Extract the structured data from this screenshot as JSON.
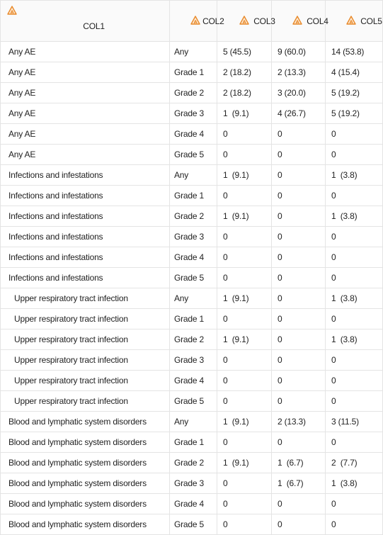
{
  "colors": {
    "header_icon": "#e8892a",
    "grid": "#e4e4e4",
    "header_bg": "#fafafa",
    "text": "#222222"
  },
  "header": {
    "icon": "character-column-icon",
    "columns": [
      "COL1",
      "COL2",
      "COL3",
      "COL4",
      "COL5"
    ]
  },
  "rows": [
    {
      "term": "Any AE",
      "grade": "Any",
      "c3": "5 (45.5)",
      "c4": "9 (60.0)",
      "c5": "14 (53.8)",
      "indent": false
    },
    {
      "term": "Any AE",
      "grade": "Grade 1",
      "c3": "2 (18.2)",
      "c4": "2 (13.3)",
      "c5": "4 (15.4)",
      "indent": false
    },
    {
      "term": "Any AE",
      "grade": "Grade 2",
      "c3": "2 (18.2)",
      "c4": "3 (20.0)",
      "c5": "5 (19.2)",
      "indent": false
    },
    {
      "term": "Any AE",
      "grade": "Grade 3",
      "c3": "1  (9.1)",
      "c4": "4 (26.7)",
      "c5": "5 (19.2)",
      "indent": false
    },
    {
      "term": "Any AE",
      "grade": "Grade 4",
      "c3": "0",
      "c4": "0",
      "c5": "0",
      "indent": false
    },
    {
      "term": "Any AE",
      "grade": "Grade 5",
      "c3": "0",
      "c4": "0",
      "c5": "0",
      "indent": false
    },
    {
      "term": "Infections and infestations",
      "grade": "Any",
      "c3": "1  (9.1)",
      "c4": "0",
      "c5": "1  (3.8)",
      "indent": false
    },
    {
      "term": "Infections and infestations",
      "grade": "Grade 1",
      "c3": "0",
      "c4": "0",
      "c5": "0",
      "indent": false
    },
    {
      "term": "Infections and infestations",
      "grade": "Grade 2",
      "c3": "1  (9.1)",
      "c4": "0",
      "c5": "1  (3.8)",
      "indent": false
    },
    {
      "term": "Infections and infestations",
      "grade": "Grade 3",
      "c3": "0",
      "c4": "0",
      "c5": "0",
      "indent": false
    },
    {
      "term": "Infections and infestations",
      "grade": "Grade 4",
      "c3": "0",
      "c4": "0",
      "c5": "0",
      "indent": false
    },
    {
      "term": "Infections and infestations",
      "grade": "Grade 5",
      "c3": "0",
      "c4": "0",
      "c5": "0",
      "indent": false
    },
    {
      "term": "Upper respiratory tract infection",
      "grade": "Any",
      "c3": "1  (9.1)",
      "c4": "0",
      "c5": "1  (3.8)",
      "indent": true
    },
    {
      "term": "Upper respiratory tract infection",
      "grade": "Grade 1",
      "c3": "0",
      "c4": "0",
      "c5": "0",
      "indent": true
    },
    {
      "term": "Upper respiratory tract infection",
      "grade": "Grade 2",
      "c3": "1  (9.1)",
      "c4": "0",
      "c5": "1  (3.8)",
      "indent": true
    },
    {
      "term": "Upper respiratory tract infection",
      "grade": "Grade 3",
      "c3": "0",
      "c4": "0",
      "c5": "0",
      "indent": true
    },
    {
      "term": "Upper respiratory tract infection",
      "grade": "Grade 4",
      "c3": "0",
      "c4": "0",
      "c5": "0",
      "indent": true
    },
    {
      "term": "Upper respiratory tract infection",
      "grade": "Grade 5",
      "c3": "0",
      "c4": "0",
      "c5": "0",
      "indent": true
    },
    {
      "term": "Blood and lymphatic system disorders",
      "grade": "Any",
      "c3": "1  (9.1)",
      "c4": "2 (13.3)",
      "c5": "3 (11.5)",
      "indent": false
    },
    {
      "term": "Blood and lymphatic system disorders",
      "grade": "Grade 1",
      "c3": "0",
      "c4": "0",
      "c5": "0",
      "indent": false
    },
    {
      "term": "Blood and lymphatic system disorders",
      "grade": "Grade 2",
      "c3": "1  (9.1)",
      "c4": "1  (6.7)",
      "c5": "2  (7.7)",
      "indent": false
    },
    {
      "term": "Blood and lymphatic system disorders",
      "grade": "Grade 3",
      "c3": "0",
      "c4": "1  (6.7)",
      "c5": "1  (3.8)",
      "indent": false
    },
    {
      "term": "Blood and lymphatic system disorders",
      "grade": "Grade 4",
      "c3": "0",
      "c4": "0",
      "c5": "0",
      "indent": false
    },
    {
      "term": "Blood and lymphatic system disorders",
      "grade": "Grade 5",
      "c3": "0",
      "c4": "0",
      "c5": "0",
      "indent": false
    }
  ]
}
